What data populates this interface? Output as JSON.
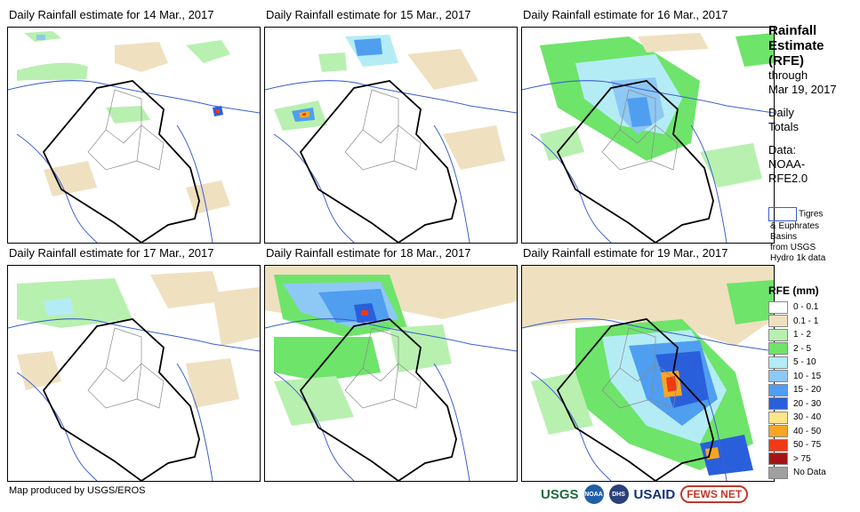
{
  "panels": [
    {
      "title": "Daily Rainfall estimate for 14 Mar., 2017"
    },
    {
      "title": "Daily Rainfall estimate for 15 Mar., 2017"
    },
    {
      "title": "Daily Rainfall estimate for 16 Mar., 2017"
    },
    {
      "title": "Daily Rainfall estimate for 17 Mar., 2017"
    },
    {
      "title": "Daily Rainfall estimate for 18 Mar., 2017"
    },
    {
      "title": "Daily Rainfall estimate for 19 Mar., 2017"
    }
  ],
  "sidebar": {
    "title_lines": [
      "Rainfall",
      "Estimate",
      "(RFE)"
    ],
    "through": "through",
    "date": "Mar 19, 2017",
    "daily": "Daily",
    "totals": "Totals",
    "data_label": "Data:",
    "source_1": "NOAA-",
    "source_2": "RFE2.0"
  },
  "basin_legend": {
    "line_1": "Tigres",
    "line_2": "& Euphrates",
    "line_3": "Basins",
    "line_4": "from USGS",
    "line_5": "Hydro 1k data",
    "color": "#3a5fcd"
  },
  "legend": {
    "title": "RFE (mm)",
    "items": [
      {
        "label": "0 - 0.1",
        "color": "#ffffff"
      },
      {
        "label": "0.1 - 1",
        "color": "#efe0c0"
      },
      {
        "label": "1 - 2",
        "color": "#b8f0b0"
      },
      {
        "label": "2 - 5",
        "color": "#6ee46a"
      },
      {
        "label": "5 - 10",
        "color": "#b4ecf6"
      },
      {
        "label": "10 - 15",
        "color": "#8ec8f4"
      },
      {
        "label": "15 - 20",
        "color": "#4f9ef0"
      },
      {
        "label": "20 - 30",
        "color": "#2a5fdc"
      },
      {
        "label": "30 - 40",
        "color": "#fde68a"
      },
      {
        "label": "40 - 50",
        "color": "#f5a623"
      },
      {
        "label": "50 - 75",
        "color": "#f03a16"
      },
      {
        "label": "> 75",
        "color": "#a31515"
      },
      {
        "label": "No Data",
        "color": "#a0a0a0"
      }
    ]
  },
  "footer": {
    "credit": "Map produced by USGS/EROS",
    "logo_usgs": "USGS",
    "logo_noaa": "NOAA",
    "logo_dhs": "DHS",
    "logo_usaid": "USAID",
    "logo_fews": "FEWS NET"
  }
}
